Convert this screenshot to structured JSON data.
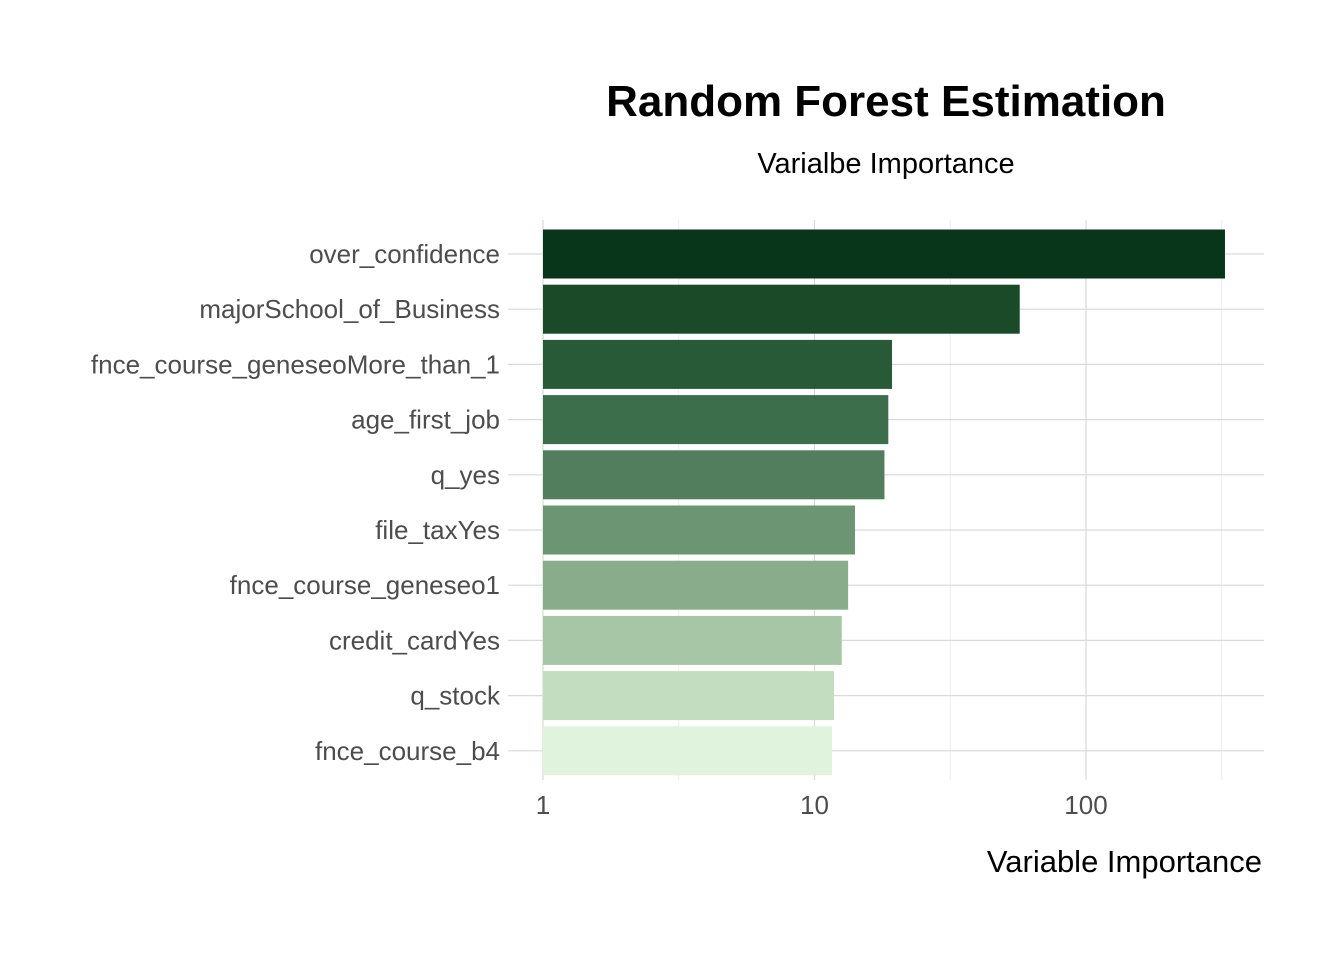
{
  "chart_data": {
    "type": "bar",
    "orientation": "horizontal",
    "title": "Random Forest Estimation",
    "subtitle": "Varialbe Importance",
    "xlabel": "Variable Importance",
    "ylabel": "",
    "x_scale": "log10",
    "xlim": [
      1,
      400
    ],
    "x_ticks": [
      {
        "value": 1,
        "label": "1"
      },
      {
        "value": 10,
        "label": "10"
      },
      {
        "value": 100,
        "label": "100"
      }
    ],
    "grid": true,
    "legend": "none",
    "categories": [
      "over_confidence",
      "majorSchool_of_Business",
      "fnce_course_geneseoMore_than_1",
      "age_first_job",
      "q_yes",
      "file_taxYes",
      "fnce_course_geneseo1",
      "credit_cardYes",
      "q_stock",
      "fnce_course_b4"
    ],
    "values": [
      325,
      57,
      19.3,
      18.7,
      18.1,
      14.1,
      13.3,
      12.6,
      11.8,
      11.6
    ],
    "colors": [
      "#08361a",
      "#1a4a28",
      "#285a38",
      "#3c6e4c",
      "#527e5e",
      "#6c9574",
      "#89ad8b",
      "#a7c6a6",
      "#c3ddc0",
      "#e0f3dc"
    ]
  }
}
